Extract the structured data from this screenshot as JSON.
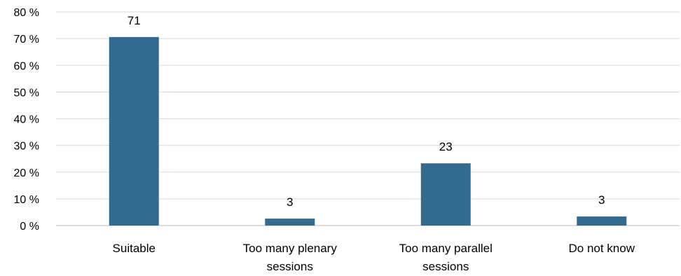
{
  "chart_data": {
    "type": "bar",
    "categories": [
      [
        "Suitable"
      ],
      [
        "Too many plenary",
        "sessions"
      ],
      [
        "Too many parallel",
        "sessions"
      ],
      [
        "Do not know"
      ]
    ],
    "values": [
      70.6,
      2.6,
      23.3,
      3.4
    ],
    "data_labels": [
      "71",
      "3",
      "23",
      "3"
    ],
    "yticks": [
      {
        "value": 0,
        "label": "0 %"
      },
      {
        "value": 10,
        "label": "10 %"
      },
      {
        "value": 20,
        "label": "20 %"
      },
      {
        "value": 30,
        "label": "30 %"
      },
      {
        "value": 40,
        "label": "40 %"
      },
      {
        "value": 50,
        "label": "50 %"
      },
      {
        "value": 60,
        "label": "60 %"
      },
      {
        "value": 70,
        "label": "70 %"
      },
      {
        "value": 80,
        "label": "80 %"
      }
    ],
    "ylim": [
      0,
      80
    ],
    "grid": true,
    "colors": {
      "bar": "#336B8F",
      "grid": "#D9D9D9",
      "axis": "#BFBFBF"
    }
  }
}
